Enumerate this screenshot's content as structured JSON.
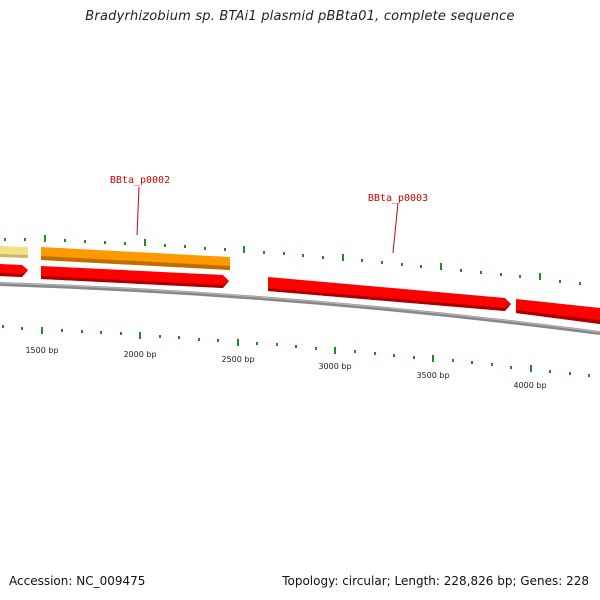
{
  "title": "Bradyrhizobium sp. BTAi1 plasmid pBBta01, complete sequence",
  "footer": {
    "accession_label": "Accession:",
    "accession": "NC_009475",
    "topology_label": "Topology:",
    "topology": "circular",
    "length_label": "Length:",
    "length": "228,826 bp",
    "genes_label": "Genes:",
    "genes": "228"
  },
  "scale_labels": [
    "1500 bp",
    "2000 bp",
    "2500 bp",
    "3000 bp",
    "3500 bp",
    "4000 bp"
  ],
  "gene_labels": [
    "BBta_p0002",
    "BBta_p0003"
  ],
  "colors": {
    "forward_gene": "#ff0000",
    "highlighted_gene": "#ff9900",
    "other_gene": "#f5e08a",
    "backbone": "#888888",
    "tick": "#228b22",
    "gene_label": "#cc0000"
  }
}
